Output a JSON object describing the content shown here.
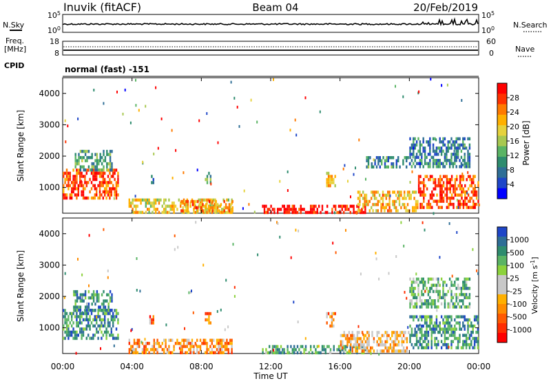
{
  "header": {
    "title": "Inuvik (fitACF)",
    "beam": "Beam 04",
    "date": "20/Feb/2019"
  },
  "top_panels": {
    "nsky_label": "N.Sky",
    "nsky_ticks": [
      "10^5",
      "10^0"
    ],
    "nsearch_label": "N.Search",
    "freq_label_1": "Freq.",
    "freq_label_2": "[MHz]",
    "freq_ticks": [
      "18",
      "8"
    ],
    "nave_label": "Nave",
    "nave_ticks": [
      "60",
      "0"
    ],
    "cpid_label": "CPID",
    "cpid_text": "normal (fast) -151"
  },
  "x_axis": {
    "label": "Time UT",
    "ticks": [
      "00:00",
      "04:00",
      "08:00",
      "12:00",
      "16:00",
      "20:00",
      "00:00"
    ]
  },
  "chart_data": [
    {
      "type": "heatmap",
      "name_label": "Power [dB]",
      "ylabel": "Slant Range [km]",
      "xlabel": "Time UT",
      "x_range_hours": [
        0,
        24
      ],
      "ylim_km": [
        180,
        4500
      ],
      "y_ticks": [
        1000,
        2000,
        3000,
        4000
      ],
      "colorbar": {
        "ticks": [
          "28",
          "24",
          "20",
          "16",
          "12",
          "8",
          "4"
        ],
        "colors": [
          "#ff0000",
          "#ff3200",
          "#ff7a00",
          "#ffb000",
          "#e6d23c",
          "#a8c850",
          "#5ab464",
          "#2e8c6e",
          "#2e6e96",
          "#1e46c8",
          "#0000ff"
        ]
      },
      "blobs": [
        {
          "t": [
            0.0,
            3.2
          ],
          "r": [
            700,
            1600
          ],
          "level": 0.85
        },
        {
          "t": [
            0.6,
            2.8
          ],
          "r": [
            1600,
            2200
          ],
          "level": 0.35
        },
        {
          "t": [
            3.8,
            9.8
          ],
          "r": [
            250,
            650
          ],
          "level": 0.6
        },
        {
          "t": [
            6.8,
            9.8
          ],
          "r": [
            250,
            600
          ],
          "level": 0.75
        },
        {
          "t": [
            5.0,
            5.2
          ],
          "r": [
            1200,
            1500
          ],
          "level": 0.3
        },
        {
          "t": [
            8.2,
            8.5
          ],
          "r": [
            1200,
            1500
          ],
          "level": 0.35
        },
        {
          "t": [
            15.2,
            15.7
          ],
          "r": [
            1100,
            1500
          ],
          "level": 0.65
        },
        {
          "t": [
            11.5,
            17.5
          ],
          "r": [
            200,
            450
          ],
          "level": 0.95
        },
        {
          "t": [
            17.0,
            20.5
          ],
          "r": [
            300,
            900
          ],
          "level": 0.65
        },
        {
          "t": [
            20.5,
            24.0
          ],
          "r": [
            400,
            1400
          ],
          "level": 0.85
        },
        {
          "t": [
            20.0,
            23.5
          ],
          "r": [
            1700,
            2600
          ],
          "level": 0.25
        },
        {
          "t": [
            17.5,
            20.0
          ],
          "r": [
            1700,
            2000
          ],
          "level": 0.3
        }
      ]
    },
    {
      "type": "heatmap",
      "name_label": "Velocity [m s^-1]",
      "ylabel": "Slant Range [km]",
      "xlabel": "Time UT",
      "x_range_hours": [
        0,
        24
      ],
      "ylim_km": [
        180,
        4500
      ],
      "y_ticks": [
        1000,
        2000,
        3000,
        4000
      ],
      "colorbar": {
        "ticks": [
          "1000",
          "500",
          "100",
          "25",
          "-25",
          "-100",
          "-500",
          "-1000"
        ],
        "colors": [
          "#1e46c8",
          "#2e6e96",
          "#2e8c6e",
          "#5ab464",
          "#8cd23c",
          "#c8c8c8",
          "#c8c8c8",
          "#ffb000",
          "#ff8c00",
          "#ff5a00",
          "#ff2d00",
          "#ff0000"
        ]
      },
      "blobs": [
        {
          "t": [
            0.0,
            3.2
          ],
          "r": [
            700,
            1600
          ],
          "level": 0.8
        },
        {
          "t": [
            0.6,
            2.8
          ],
          "r": [
            1600,
            2200
          ],
          "level": 0.8
        },
        {
          "t": [
            3.8,
            9.8
          ],
          "r": [
            250,
            650
          ],
          "level": 0.3
        },
        {
          "t": [
            5.0,
            5.2
          ],
          "r": [
            1200,
            1500
          ],
          "level": 0.25
        },
        {
          "t": [
            8.2,
            8.5
          ],
          "r": [
            1200,
            1500
          ],
          "level": 0.25
        },
        {
          "t": [
            15.2,
            15.7
          ],
          "r": [
            1100,
            1500
          ],
          "level": 0.3
        },
        {
          "t": [
            11.5,
            17.5
          ],
          "r": [
            200,
            450
          ],
          "level": 0.75
        },
        {
          "t": [
            16.0,
            20.0
          ],
          "r": [
            300,
            900
          ],
          "level": 0.4
        },
        {
          "t": [
            20.0,
            24.0
          ],
          "r": [
            400,
            1400
          ],
          "level": 0.8
        },
        {
          "t": [
            20.0,
            23.5
          ],
          "r": [
            1700,
            2600
          ],
          "level": 0.7
        }
      ]
    }
  ]
}
